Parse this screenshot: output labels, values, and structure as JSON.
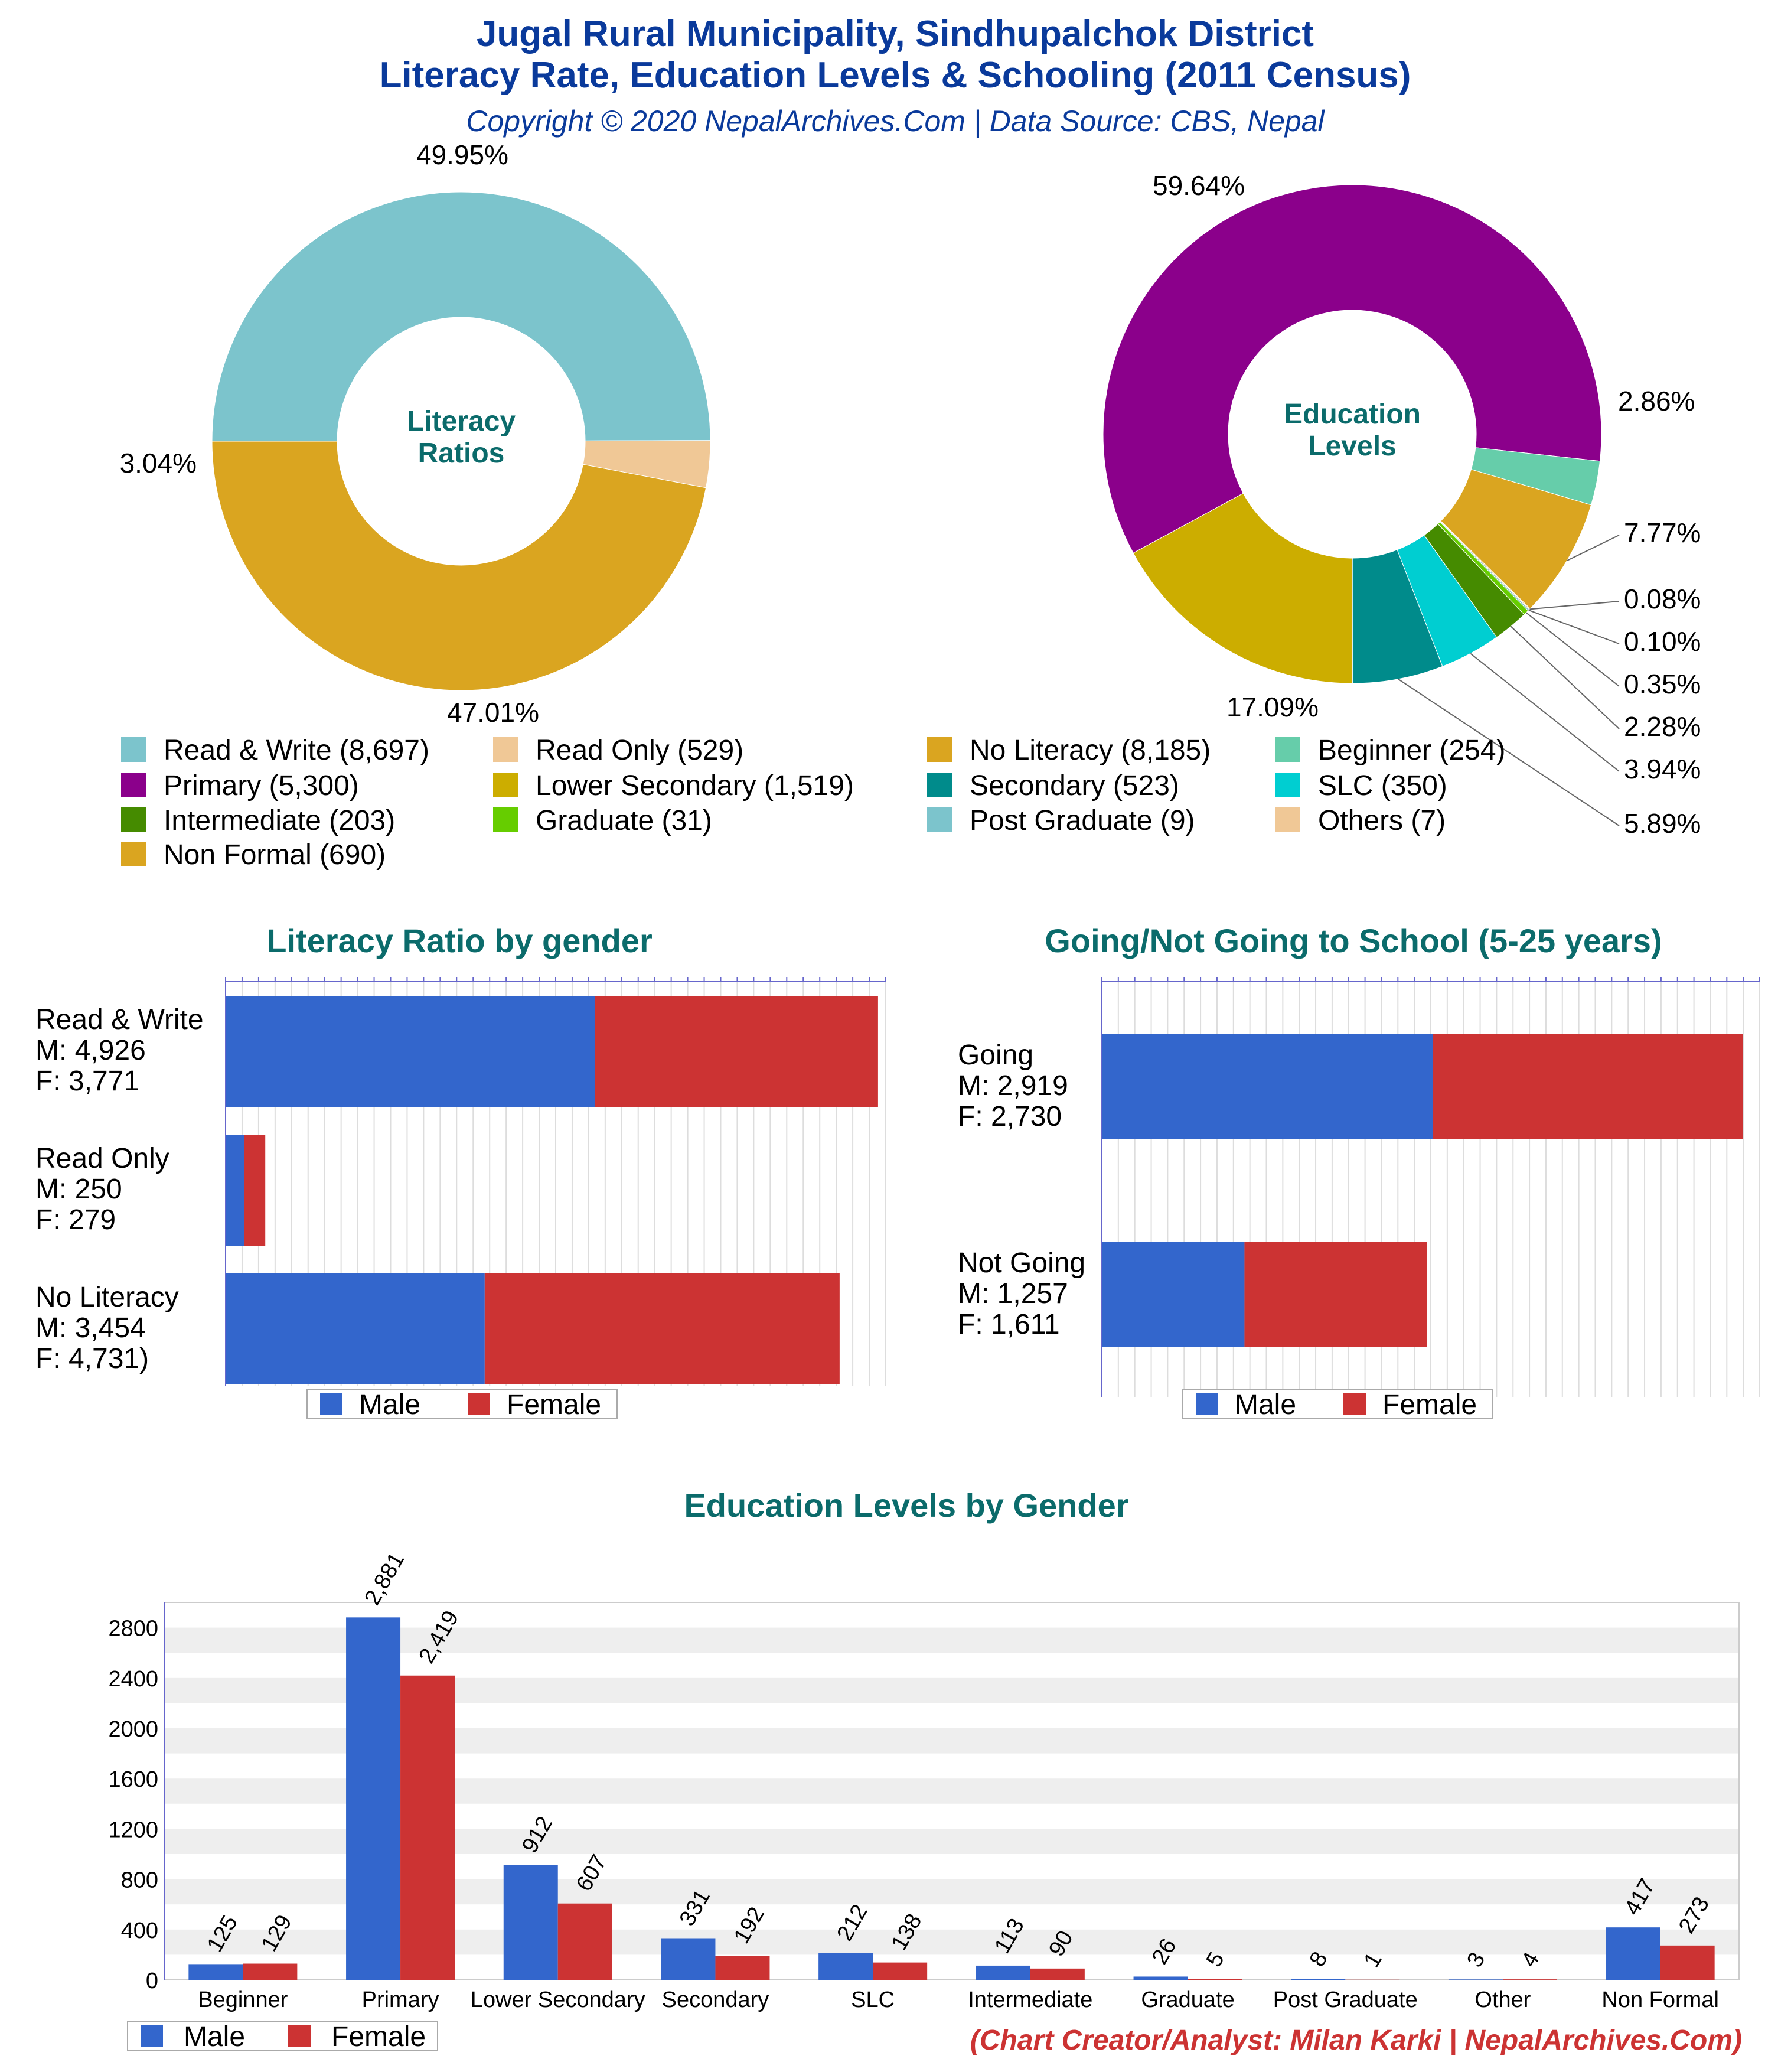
{
  "header": {
    "title_line1": "Jugal Rural Municipality, Sindhupalchok District",
    "title_line2": "Literacy Rate, Education Levels & Schooling (2011 Census)",
    "copyright": "Copyright © 2020 NepalArchives.Com | Data Source: CBS, Nepal"
  },
  "footer": {
    "credit": "(Chart Creator/Analyst: Milan Karki | NepalArchives.Com)"
  },
  "colors": {
    "male": "#3366cc",
    "female": "#cc3333",
    "title": "#0a3a9b",
    "section_title": "#0b6b6b"
  },
  "legend": {
    "items": [
      {
        "label": "Read & Write (8,697)",
        "color": "#7cc4cc"
      },
      {
        "label": "Read Only (529)",
        "color": "#f0c896"
      },
      {
        "label": "No Literacy (8,185)",
        "color": "#daa520"
      },
      {
        "label": "Beginner (254)",
        "color": "#66cdaa"
      },
      {
        "label": "Primary (5,300)",
        "color": "#8b008b"
      },
      {
        "label": "Lower Secondary (1,519)",
        "color": "#ccad00"
      },
      {
        "label": "Secondary (523)",
        "color": "#008b8b"
      },
      {
        "label": "SLC (350)",
        "color": "#00ced1"
      },
      {
        "label": "Intermediate (203)",
        "color": "#458b00"
      },
      {
        "label": "Graduate (31)",
        "color": "#66cd00"
      },
      {
        "label": "Post Graduate (9)",
        "color": "#7cc4cc"
      },
      {
        "label": "Others (7)",
        "color": "#f0c896"
      },
      {
        "label": "Non Formal (690)",
        "color": "#daa520"
      }
    ]
  },
  "chart_data": [
    {
      "type": "pie",
      "center_label": "Literacy\nRatios",
      "labels": [
        "Read & Write",
        "Read Only",
        "No Literacy"
      ],
      "values": [
        8697,
        529,
        8185
      ],
      "percent_labels": [
        "49.95%",
        "3.04%",
        "47.01%"
      ],
      "colors": [
        "#7cc4cc",
        "#f0c896",
        "#daa520"
      ]
    },
    {
      "type": "pie",
      "center_label": "Education\nLevels",
      "labels": [
        "Primary",
        "Beginner",
        "Non Formal",
        "Others",
        "Post Graduate",
        "Graduate",
        "Intermediate",
        "SLC",
        "Secondary",
        "Lower Secondary"
      ],
      "values": [
        5300,
        254,
        690,
        7,
        9,
        31,
        203,
        350,
        523,
        1519
      ],
      "percent_labels": [
        "59.64%",
        "2.86%",
        "7.77%",
        "0.08%",
        "0.10%",
        "0.35%",
        "2.28%",
        "3.94%",
        "5.89%",
        "17.09%"
      ],
      "colors": [
        "#8b008b",
        "#66cdaa",
        "#daa520",
        "#f0c896",
        "#7cc4cc",
        "#66cd00",
        "#458b00",
        "#00ced1",
        "#008b8b",
        "#ccad00"
      ]
    },
    {
      "type": "bar",
      "orientation": "horizontal",
      "stacked": true,
      "title": "Literacy Ratio by gender",
      "categories": [
        "Read & Write",
        "Read Only",
        "No Literacy"
      ],
      "category_labels": [
        [
          "Read & Write",
          "M: 4,926",
          "F: 3,771"
        ],
        [
          "Read Only",
          "M: 250",
          "F: 279"
        ],
        [
          "No Literacy",
          "M: 3,454",
          "F: 4,731)"
        ]
      ],
      "series": [
        {
          "name": "Male",
          "values": [
            4926,
            250,
            3454
          ]
        },
        {
          "name": "Female",
          "values": [
            3771,
            279,
            4731
          ]
        }
      ],
      "xlim": [
        0,
        8800
      ],
      "legend": [
        "Male",
        "Female"
      ]
    },
    {
      "type": "bar",
      "orientation": "horizontal",
      "stacked": true,
      "title": "Going/Not Going to School (5-25 years)",
      "categories": [
        "Going",
        "Not Going"
      ],
      "category_labels": [
        [
          "Going",
          "M: 2,919",
          "F: 2,730"
        ],
        [
          "Not Going",
          "M: 1,257",
          "F: 1,611"
        ]
      ],
      "series": [
        {
          "name": "Male",
          "values": [
            2919,
            1257
          ]
        },
        {
          "name": "Female",
          "values": [
            2730,
            1611
          ]
        }
      ],
      "xlim": [
        0,
        5800
      ],
      "legend": [
        "Male",
        "Female"
      ]
    },
    {
      "type": "bar",
      "title": "Education Levels by Gender",
      "categories": [
        "Beginner",
        "Primary",
        "Lower Secondary",
        "Secondary",
        "SLC",
        "Intermediate",
        "Graduate",
        "Post Graduate",
        "Other",
        "Non Formal"
      ],
      "series": [
        {
          "name": "Male",
          "values": [
            125,
            2881,
            912,
            331,
            212,
            113,
            26,
            8,
            3,
            417
          ]
        },
        {
          "name": "Female",
          "values": [
            129,
            2419,
            607,
            192,
            138,
            90,
            5,
            1,
            4,
            273
          ]
        }
      ],
      "value_labels": {
        "Male": [
          "125",
          "2,881",
          "912",
          "331",
          "212",
          "113",
          "26",
          "8",
          "3",
          "417"
        ],
        "Female": [
          "129",
          "2,419",
          "607",
          "192",
          "138",
          "90",
          "5",
          "1",
          "4",
          "273"
        ]
      },
      "yticks": [
        "0",
        "400",
        "800",
        "1200",
        "1600",
        "2000",
        "2400",
        "2800"
      ],
      "ylim": [
        0,
        3000
      ],
      "legend": [
        "Male",
        "Female"
      ]
    }
  ]
}
